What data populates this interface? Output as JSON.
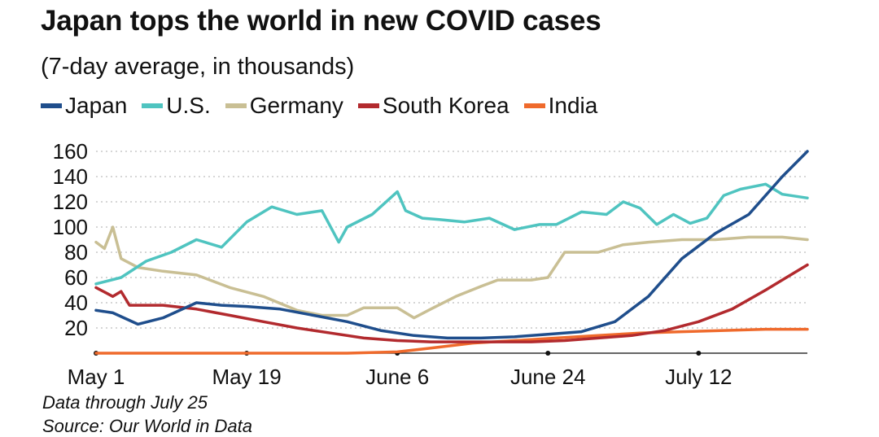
{
  "colors": {
    "japan": "#1f4e8c",
    "us": "#4fc4c0",
    "germany": "#c9bf94",
    "south_korea": "#b22a2e",
    "india": "#ef6a2c",
    "gridline": "#c8c8c8",
    "axis": "#333333"
  },
  "footer": {
    "data_through": "Data through July 25",
    "source": "Source: Our World in Data"
  },
  "chart_data": {
    "type": "line",
    "title": "Japan tops the world in new COVID cases",
    "subtitle": "(7-day average, in thousands)",
    "xlabel": "",
    "ylabel": "",
    "ylim": [
      0,
      160
    ],
    "yticks": [
      20,
      40,
      60,
      80,
      100,
      120,
      140,
      160
    ],
    "ytick_labels": [
      "20",
      "40",
      "60",
      "80",
      "100",
      "120",
      "140",
      "160"
    ],
    "xlim": [
      0,
      85
    ],
    "xticks": [
      0,
      18,
      36,
      54,
      72
    ],
    "xtick_labels": [
      "May 1",
      "May 19",
      "June 6",
      "June 24",
      "July 12"
    ],
    "x_unit": "days since May 1",
    "grid": "horizontal dotted",
    "legend_position": "top",
    "series": [
      {
        "key": "japan",
        "name": "Japan",
        "x": [
          0,
          2,
          5,
          8,
          12,
          15,
          18,
          22,
          26,
          30,
          34,
          38,
          42,
          46,
          50,
          54,
          58,
          62,
          66,
          70,
          74,
          78,
          82,
          85
        ],
        "values": [
          34,
          32,
          23,
          28,
          40,
          38,
          37,
          35,
          30,
          25,
          18,
          14,
          12,
          12,
          13,
          15,
          17,
          25,
          45,
          75,
          95,
          110,
          140,
          160
        ]
      },
      {
        "key": "us",
        "name": "U.S.",
        "x": [
          0,
          3,
          6,
          9,
          12,
          15,
          18,
          21,
          24,
          27,
          29,
          30,
          33,
          36,
          37,
          39,
          41,
          44,
          47,
          50,
          53,
          55,
          58,
          61,
          63,
          65,
          67,
          69,
          71,
          73,
          75,
          77,
          80,
          82,
          85
        ],
        "values": [
          55,
          60,
          73,
          80,
          90,
          84,
          104,
          116,
          110,
          113,
          88,
          100,
          110,
          128,
          113,
          107,
          106,
          104,
          107,
          98,
          102,
          102,
          112,
          110,
          120,
          115,
          102,
          110,
          103,
          107,
          125,
          130,
          134,
          126,
          123
        ]
      },
      {
        "key": "germany",
        "name": "Germany",
        "x": [
          0,
          1,
          2,
          3,
          5,
          8,
          12,
          16,
          20,
          24,
          27,
          30,
          32,
          36,
          38,
          40,
          43,
          46,
          48,
          52,
          54,
          56,
          58,
          60,
          63,
          66,
          70,
          74,
          78,
          82,
          85
        ],
        "values": [
          88,
          83,
          100,
          75,
          68,
          65,
          62,
          52,
          45,
          34,
          30,
          30,
          36,
          36,
          28,
          35,
          45,
          53,
          58,
          58,
          60,
          80,
          80,
          80,
          86,
          88,
          90,
          90,
          92,
          92,
          90
        ]
      },
      {
        "key": "south_korea",
        "name": "South Korea",
        "x": [
          0,
          2,
          3,
          4,
          8,
          12,
          16,
          20,
          24,
          28,
          32,
          36,
          40,
          44,
          48,
          52,
          56,
          60,
          64,
          68,
          72,
          76,
          80,
          83,
          85
        ],
        "values": [
          52,
          45,
          49,
          38,
          38,
          35,
          30,
          25,
          20,
          16,
          12,
          10,
          9,
          9,
          9,
          9,
          10,
          12,
          14,
          18,
          25,
          35,
          50,
          62,
          70
        ]
      },
      {
        "key": "india",
        "name": "India",
        "x": [
          0,
          10,
          20,
          30,
          36,
          40,
          45,
          50,
          55,
          60,
          65,
          70,
          75,
          80,
          85
        ],
        "values": [
          0,
          0,
          0,
          0,
          1,
          4,
          8,
          10,
          12,
          14,
          16,
          17,
          18,
          19,
          19
        ]
      }
    ]
  }
}
